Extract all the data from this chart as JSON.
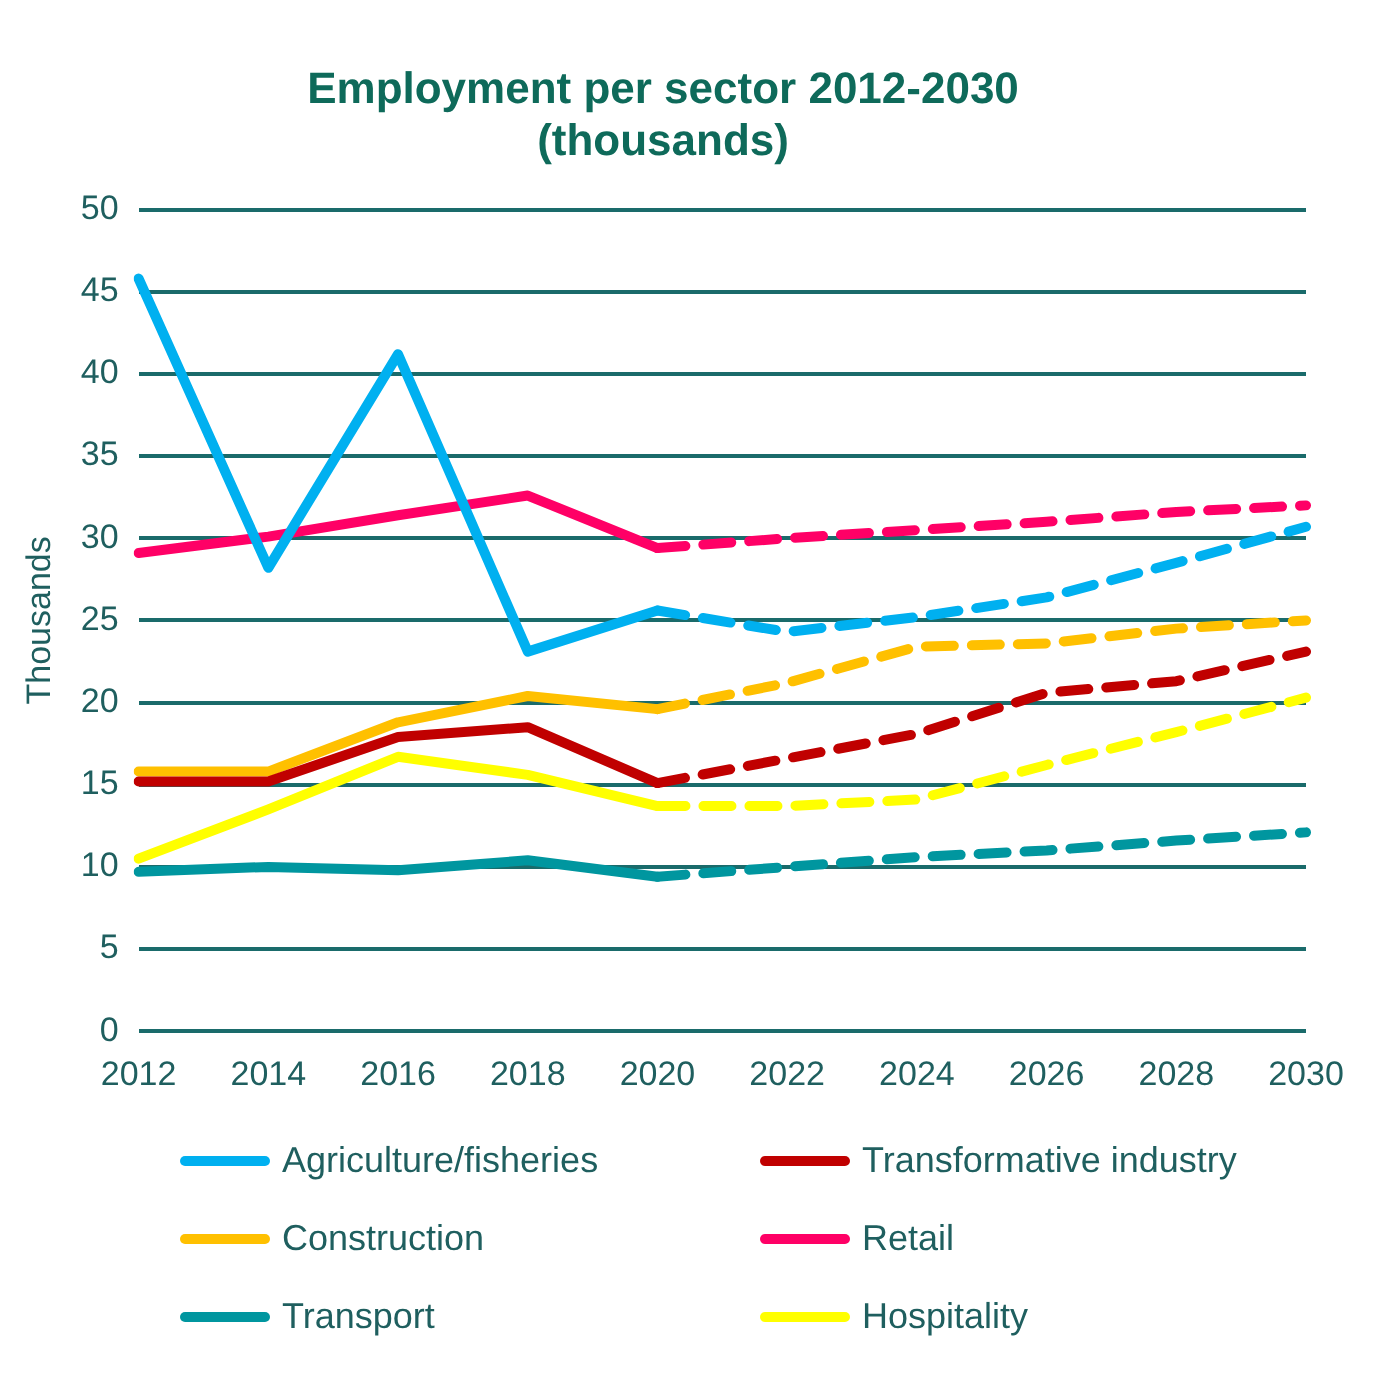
{
  "chart_data": {
    "type": "line",
    "title": "Employment per sector 2012-2030\n(thousands)",
    "ylabel": "Thousands",
    "categories": [
      "2012",
      "2014",
      "2016",
      "2018",
      "2020",
      "2022",
      "2024",
      "2026",
      "2028",
      "2030"
    ],
    "ylim": [
      0,
      50
    ],
    "yticks": [
      0,
      5,
      10,
      15,
      20,
      25,
      30,
      35,
      40,
      45,
      50
    ],
    "grid": "y",
    "legend": "bottom",
    "marker": "none",
    "series": [
      {
        "name": "Agriculture/fisheries",
        "color": "#00b0f0",
        "line_style": "solid",
        "values": [
          45.8,
          28.2,
          41.2,
          23.1,
          25.6,
          null,
          null,
          null,
          null,
          null
        ]
      },
      {
        "name": "Transformative industry",
        "color": "#c00000",
        "line_style": "solid",
        "values": [
          15.2,
          15.2,
          17.9,
          18.5,
          15.1,
          null,
          null,
          null,
          null,
          null
        ]
      },
      {
        "name": "Construction",
        "color": "#ffc000",
        "line_style": "solid",
        "values": [
          15.8,
          15.8,
          18.8,
          20.4,
          19.6,
          null,
          null,
          null,
          null,
          null
        ]
      },
      {
        "name": "Retail",
        "color": "#ff0066",
        "line_style": "solid",
        "values": [
          29.1,
          30.1,
          31.4,
          32.6,
          29.4,
          null,
          null,
          null,
          null,
          null
        ]
      },
      {
        "name": "Transport",
        "color": "#00969f",
        "line_style": "solid",
        "values": [
          9.7,
          10.0,
          9.8,
          10.4,
          9.4,
          null,
          null,
          null,
          null,
          null
        ]
      },
      {
        "name": "Hospitality",
        "color": "#ffff00",
        "line_style": "solid",
        "values": [
          10.5,
          13.5,
          16.7,
          15.6,
          13.7,
          null,
          null,
          null,
          null,
          null
        ]
      },
      {
        "color": "#00b0f0",
        "line_style": "dashed",
        "values": [
          null,
          null,
          null,
          null,
          25.6,
          24.3,
          25.2,
          26.4,
          28.5,
          30.7
        ]
      },
      {
        "color": "#c00000",
        "line_style": "dashed",
        "values": [
          null,
          null,
          null,
          null,
          15.1,
          16.6,
          18.1,
          20.6,
          21.3,
          23.1
        ]
      },
      {
        "color": "#ffc000",
        "line_style": "dashed",
        "values": [
          null,
          null,
          null,
          null,
          19.6,
          21.2,
          23.4,
          23.6,
          24.5,
          25.0
        ]
      },
      {
        "color": "#ff0066",
        "line_style": "dashed",
        "values": [
          null,
          null,
          null,
          null,
          29.4,
          30.0,
          30.5,
          31.0,
          31.6,
          32.0
        ]
      },
      {
        "color": "#00969f",
        "line_style": "dashed",
        "values": [
          null,
          null,
          null,
          null,
          9.4,
          10.0,
          10.6,
          11.0,
          11.6,
          12.1
        ]
      },
      {
        "color": "#ffff00",
        "line_style": "dashed",
        "values": [
          null,
          null,
          null,
          null,
          13.7,
          13.7,
          14.1,
          16.2,
          18.2,
          20.3
        ]
      }
    ]
  }
}
